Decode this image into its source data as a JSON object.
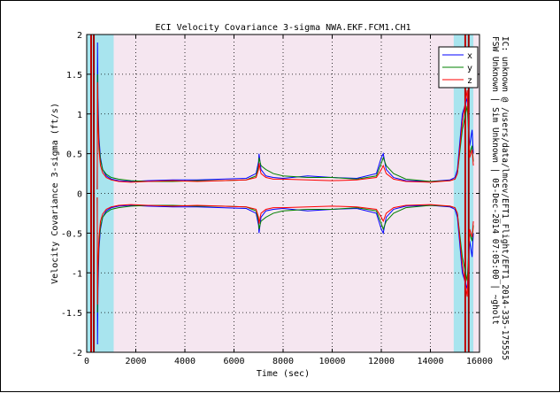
{
  "chart_data": {
    "type": "line",
    "title": "ECI Velocity Covariance 3-sigma NWA.EKF.FCM1.CH1",
    "xlabel": "Time (sec)",
    "ylabel": "Velocity Covariance 3-sigma (ft/s)",
    "side_note": "FSW Unknown  |  Sim Unknown  |  05-Dec-2014 07:05:00  |  ~gholt",
    "side_note_2": "IC: unknown @ /users/data/lmcev/EFT1_Flight/EFT1_2014-335-175555",
    "xlim": [
      0,
      16000
    ],
    "ylim": [
      -2,
      2
    ],
    "x_ticks": [
      0,
      2000,
      4000,
      6000,
      8000,
      10000,
      12000,
      14000,
      16000
    ],
    "y_ticks": [
      -2,
      -1.5,
      -1,
      -0.5,
      0,
      0.5,
      1,
      1.5,
      2
    ],
    "grid": true,
    "legend_position": "top-right",
    "background_color": "#f5e6f0",
    "regions": [
      {
        "x0": 0,
        "x1": 1100,
        "color": "#a8e4ee"
      },
      {
        "x0": 1100,
        "x1": 14950,
        "color": "#f5e6f0"
      },
      {
        "x0": 14950,
        "x1": 15750,
        "color": "#a8e4ee"
      }
    ],
    "event_lines": [
      {
        "x": 180,
        "color": "#c00000"
      },
      {
        "x": 290,
        "color": "#a00000"
      },
      {
        "x": 15420,
        "color": "#c00000"
      },
      {
        "x": 15560,
        "color": "#a00000"
      }
    ],
    "series": [
      {
        "name": "x",
        "color": "#0000ff",
        "x": [
          430,
          440,
          460,
          500,
          560,
          650,
          800,
          1000,
          1300,
          1800,
          2500,
          3500,
          4500,
          5500,
          6500,
          6900,
          7000,
          7020,
          7100,
          7300,
          7600,
          8000,
          9000,
          10000,
          11000,
          11800,
          12000,
          12080,
          12200,
          12500,
          13000,
          14000,
          14800,
          15000,
          15100,
          15300,
          15500,
          15600,
          15700,
          15750
        ],
        "values": [
          0.05,
          1.9,
          1.2,
          0.7,
          0.45,
          0.3,
          0.22,
          0.18,
          0.16,
          0.15,
          0.16,
          0.17,
          0.17,
          0.18,
          0.19,
          0.25,
          0.4,
          0.5,
          0.3,
          0.22,
          0.2,
          0.19,
          0.22,
          0.2,
          0.19,
          0.25,
          0.45,
          0.5,
          0.3,
          0.2,
          0.16,
          0.15,
          0.17,
          0.2,
          0.3,
          1.0,
          1.2,
          0.6,
          0.8,
          0.5
        ]
      },
      {
        "name": "y",
        "color": "#008000",
        "x": [
          430,
          440,
          460,
          500,
          560,
          650,
          800,
          1000,
          1300,
          1800,
          2500,
          3500,
          4500,
          5500,
          6500,
          6900,
          7000,
          7020,
          7100,
          7300,
          7600,
          8000,
          9000,
          10000,
          11000,
          11800,
          12000,
          12080,
          12200,
          12500,
          13000,
          14000,
          14800,
          15000,
          15100,
          15300,
          15500,
          15600,
          15700,
          15750
        ],
        "values": [
          0.05,
          1.5,
          1.0,
          0.62,
          0.42,
          0.3,
          0.24,
          0.2,
          0.18,
          0.16,
          0.15,
          0.15,
          0.16,
          0.16,
          0.17,
          0.22,
          0.35,
          0.45,
          0.35,
          0.3,
          0.25,
          0.22,
          0.2,
          0.2,
          0.18,
          0.22,
          0.38,
          0.45,
          0.35,
          0.25,
          0.18,
          0.15,
          0.16,
          0.18,
          0.25,
          0.8,
          1.1,
          0.5,
          0.6,
          0.4
        ]
      },
      {
        "name": "z",
        "color": "#ff0000",
        "x": [
          430,
          440,
          460,
          500,
          560,
          650,
          800,
          1000,
          1300,
          1800,
          2500,
          3500,
          4500,
          5500,
          6500,
          6900,
          7000,
          7020,
          7100,
          7300,
          7600,
          8000,
          9000,
          10000,
          11000,
          11800,
          12000,
          12080,
          12200,
          12500,
          13000,
          14000,
          14800,
          15000,
          15100,
          15300,
          15500,
          15600,
          15700,
          15750
        ],
        "values": [
          0.05,
          1.4,
          0.9,
          0.55,
          0.35,
          0.26,
          0.2,
          0.17,
          0.15,
          0.14,
          0.15,
          0.16,
          0.15,
          0.16,
          0.17,
          0.2,
          0.3,
          0.38,
          0.25,
          0.2,
          0.18,
          0.18,
          0.17,
          0.16,
          0.17,
          0.2,
          0.3,
          0.35,
          0.25,
          0.18,
          0.15,
          0.14,
          0.16,
          0.18,
          0.25,
          0.9,
          1.3,
          0.45,
          0.55,
          0.35
        ]
      }
    ],
    "symmetric_negative": true
  }
}
